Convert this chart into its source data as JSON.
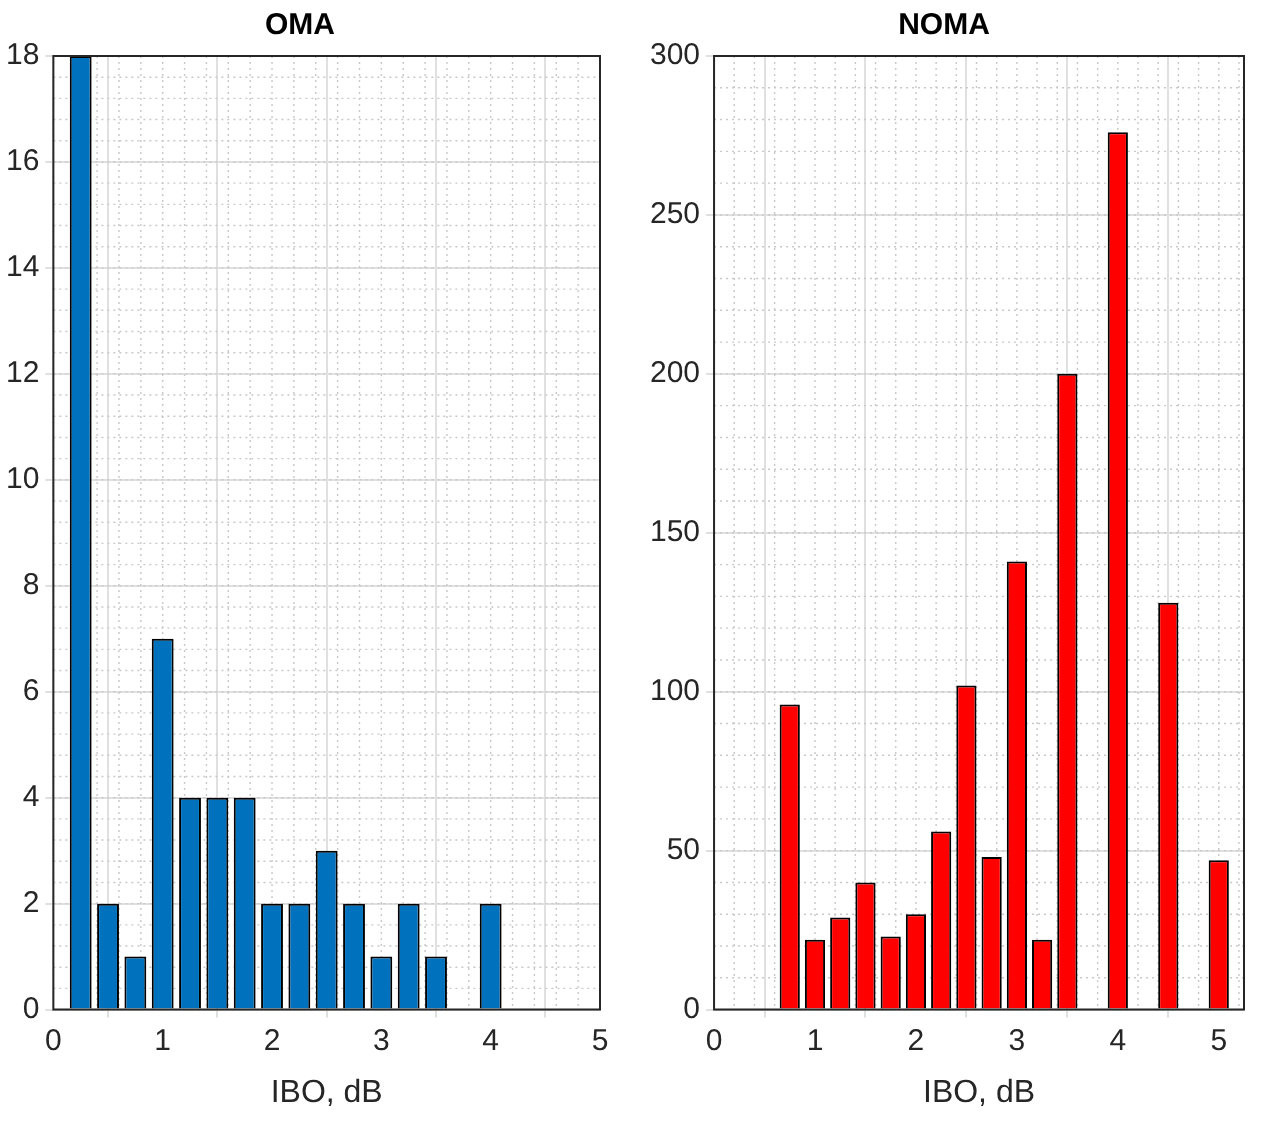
{
  "chart_data": [
    {
      "type": "histogram",
      "title": "OMA",
      "xlabel": "IBO, dB",
      "bins": [
        0.125,
        0.375,
        0.625,
        0.875,
        1.125,
        1.375,
        1.625,
        1.875,
        2.125,
        2.375,
        2.625,
        2.875,
        3.125,
        3.375,
        3.625,
        3.875,
        4.125
      ],
      "values": [
        18,
        2,
        1,
        7,
        4,
        4,
        4,
        2,
        2,
        3,
        2,
        1,
        2,
        1,
        0,
        2
      ],
      "color": "#0072bd",
      "xlim": [
        0,
        5
      ],
      "xticks": [
        0,
        1,
        2,
        3,
        4,
        5
      ],
      "ylim": [
        0,
        18
      ],
      "yticks": [
        0,
        2,
        4,
        6,
        8,
        10,
        12,
        14,
        16,
        18
      ],
      "grid": true
    },
    {
      "type": "histogram",
      "title": "NOMA",
      "xlabel": "IBO, dB",
      "bins": [
        0.125,
        0.375,
        0.625,
        0.875,
        1.125,
        1.375,
        1.625,
        1.875,
        2.125,
        2.375,
        2.625,
        2.875,
        3.125,
        3.375,
        3.625,
        3.875,
        4.125,
        4.375,
        4.625,
        4.875,
        5.125
      ],
      "values": [
        0,
        0,
        96,
        22,
        29,
        40,
        23,
        30,
        56,
        102,
        48,
        141,
        22,
        200,
        0,
        276,
        0,
        128,
        0,
        47
      ],
      "color": "#ff0000",
      "xlim": [
        0,
        5.25
      ],
      "xticks": [
        0,
        1,
        2,
        3,
        4,
        5
      ],
      "ylim": [
        0,
        300
      ],
      "yticks": [
        0,
        50,
        100,
        150,
        200,
        250,
        300
      ],
      "grid": true
    }
  ]
}
